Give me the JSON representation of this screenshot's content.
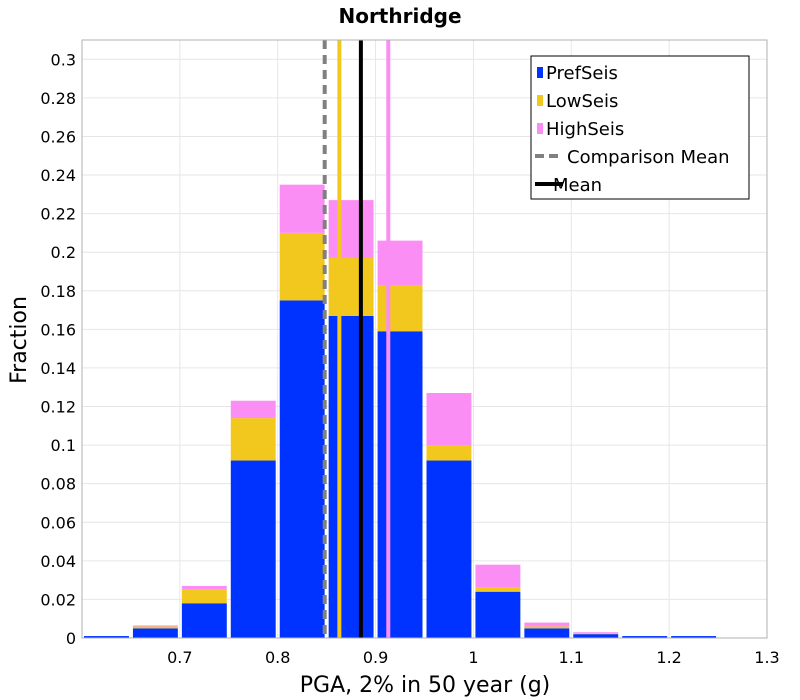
{
  "chart_data": {
    "type": "bar",
    "stacked": true,
    "title": "Northridge",
    "xlabel": "PGA, 2% in 50 year (g)",
    "ylabel": "Fraction",
    "xlim": [
      0.6,
      1.3
    ],
    "ylim": [
      0,
      0.31
    ],
    "xticks": [
      0.7,
      0.8,
      0.9,
      1,
      1.1,
      1.2,
      1.3
    ],
    "yticks": [
      0,
      0.02,
      0.04,
      0.06,
      0.08,
      0.1,
      0.12,
      0.14,
      0.16,
      0.18,
      0.2,
      0.22,
      0.24,
      0.26,
      0.28,
      0.3
    ],
    "grid": true,
    "bin_width": 0.05,
    "bin_centers": [
      0.625,
      0.675,
      0.725,
      0.775,
      0.825,
      0.875,
      0.925,
      0.975,
      1.025,
      1.075,
      1.125,
      1.175,
      1.225
    ],
    "series": [
      {
        "name": "PrefSeis",
        "color": "#0033ff",
        "values": [
          0.001,
          0.005,
          0.018,
          0.092,
          0.175,
          0.167,
          0.159,
          0.092,
          0.024,
          0.005,
          0.002,
          0.001,
          0.001
        ]
      },
      {
        "name": "LowSeis",
        "color": "#f2c81e",
        "values": [
          0.0,
          0.001,
          0.007,
          0.022,
          0.035,
          0.03,
          0.024,
          0.008,
          0.002,
          0.001,
          0.0005,
          0.0,
          0.0
        ]
      },
      {
        "name": "HighSeis",
        "color": "#fb8ef5",
        "values": [
          0.0,
          0.0005,
          0.002,
          0.009,
          0.025,
          0.03,
          0.023,
          0.027,
          0.012,
          0.002,
          0.0005,
          0.0,
          0.0
        ]
      }
    ],
    "vlines": [
      {
        "name": "Comparison Mean",
        "x": 0.848,
        "color": "#808080",
        "style": "dashed",
        "in_legend": true
      },
      {
        "name": "Mean",
        "x": 0.885,
        "color": "#000000",
        "style": "solid",
        "in_legend": true
      },
      {
        "name": "",
        "x": 0.863,
        "color": "#f2c81e",
        "style": "solid",
        "in_legend": false
      },
      {
        "name": "",
        "x": 0.913,
        "color": "#fb8ef5",
        "style": "solid",
        "in_legend": false
      }
    ],
    "legend_position": "top-right",
    "legend_entries": [
      "PrefSeis",
      "LowSeis",
      "HighSeis",
      "Comparison Mean",
      "Mean"
    ]
  }
}
